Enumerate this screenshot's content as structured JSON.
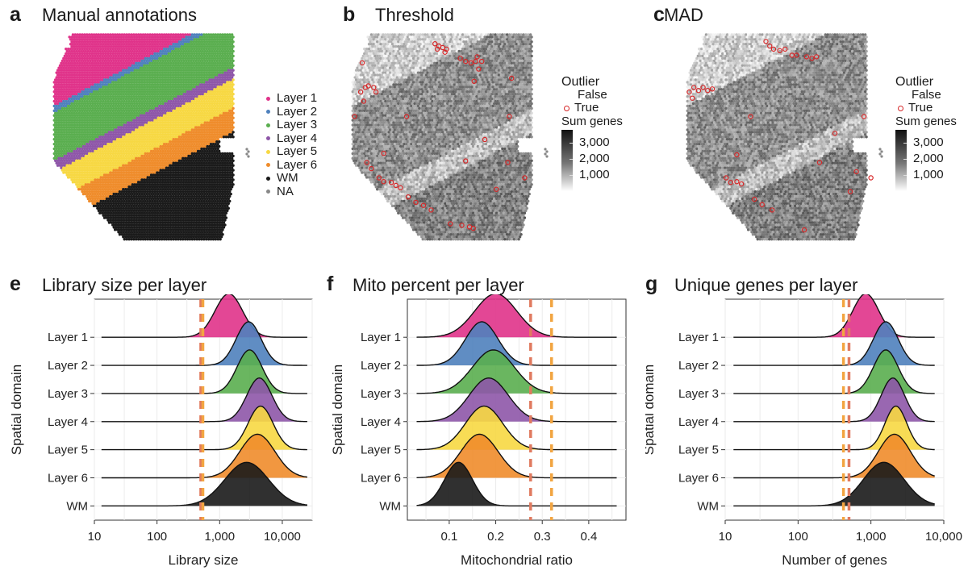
{
  "panels": {
    "a": {
      "letter": "a",
      "title": "Manual annotations"
    },
    "b": {
      "letter": "b",
      "title": "Threshold"
    },
    "c": {
      "letter": "c",
      "title": "MAD"
    },
    "e": {
      "letter": "e",
      "title": "Library size per layer"
    },
    "f": {
      "letter": "f",
      "title": "Mito percent per layer"
    },
    "g": {
      "letter": "g",
      "title": "Unique genes per layer"
    }
  },
  "legend_layers": [
    {
      "label": "Layer 1",
      "color": "#e0338a"
    },
    {
      "label": "Layer 2",
      "color": "#4f81bd"
    },
    {
      "label": "Layer 3",
      "color": "#5aae4f"
    },
    {
      "label": "Layer 4",
      "color": "#8e56a8"
    },
    {
      "label": "Layer 5",
      "color": "#f7d843"
    },
    {
      "label": "Layer 6",
      "color": "#ef8c2b"
    },
    {
      "label": "WM",
      "color": "#1a1a1a"
    },
    {
      "label": "NA",
      "color": "#888888"
    }
  ],
  "outlier_legend": {
    "title": "Outlier",
    "items": [
      {
        "label": "False"
      },
      {
        "label": "True",
        "color": "#d62728"
      }
    ],
    "colorbar_title": "Sum genes",
    "colorbar_ticks": [
      "3,000",
      "2,000",
      "1,000"
    ],
    "colorbar_values": [
      3000,
      2000,
      1000
    ],
    "colorbar_range": [
      0,
      3800
    ]
  },
  "chart_data": [
    {
      "type": "ridgeline",
      "panel": "e",
      "title": "Library size per layer",
      "xlabel": "Library size",
      "ylabel": "Spatial domain",
      "xscale": "log",
      "xlim": [
        10,
        30000
      ],
      "xticks": [
        10,
        100,
        1000,
        10000
      ],
      "xtick_labels": [
        "10",
        "100",
        "1,000",
        "10,000"
      ],
      "categories": [
        "Layer 1",
        "Layer 2",
        "Layer 3",
        "Layer 4",
        "Layer 5",
        "Layer 6",
        "WM"
      ],
      "series": [
        {
          "name": "Layer 1",
          "peak": 1400,
          "sd": 0.22,
          "range": [
            13,
            25000
          ]
        },
        {
          "name": "Layer 2",
          "peak": 2900,
          "sd": 0.2,
          "range": [
            13,
            25000
          ]
        },
        {
          "name": "Layer 3",
          "peak": 3000,
          "sd": 0.2,
          "range": [
            13,
            25000
          ]
        },
        {
          "name": "Layer 4",
          "peak": 4300,
          "sd": 0.2,
          "range": [
            13,
            25000
          ]
        },
        {
          "name": "Layer 5",
          "peak": 4500,
          "sd": 0.2,
          "range": [
            13,
            25000
          ]
        },
        {
          "name": "Layer 6",
          "peak": 4000,
          "sd": 0.28,
          "range": [
            13,
            25000
          ]
        },
        {
          "name": "WM",
          "peak": 2700,
          "sd": 0.35,
          "range": [
            13,
            25000
          ]
        }
      ],
      "thresholds": [
        {
          "value": 500,
          "color": "#e07a5f"
        },
        {
          "value": 540,
          "color": "#f2a541"
        }
      ]
    },
    {
      "type": "ridgeline",
      "panel": "f",
      "title": "Mito percent per layer",
      "xlabel": "Mitochondrial ratio",
      "ylabel": "Spatial domain",
      "xscale": "linear",
      "xlim": [
        0.01,
        0.48
      ],
      "xticks": [
        0.1,
        0.2,
        0.3,
        0.4
      ],
      "xtick_labels": [
        "0.1",
        "0.2",
        "0.3",
        "0.4"
      ],
      "categories": [
        "Layer 1",
        "Layer 2",
        "Layer 3",
        "Layer 4",
        "Layer 5",
        "Layer 6",
        "WM"
      ],
      "series": [
        {
          "name": "Layer 1",
          "peak": 0.2,
          "sd": 0.045,
          "range": [
            0.03,
            0.46
          ]
        },
        {
          "name": "Layer 2",
          "peak": 0.17,
          "sd": 0.035,
          "range": [
            0.03,
            0.46
          ]
        },
        {
          "name": "Layer 3",
          "peak": 0.195,
          "sd": 0.045,
          "range": [
            0.03,
            0.46
          ]
        },
        {
          "name": "Layer 4",
          "peak": 0.185,
          "sd": 0.042,
          "range": [
            0.03,
            0.46
          ]
        },
        {
          "name": "Layer 5",
          "peak": 0.175,
          "sd": 0.04,
          "range": [
            0.03,
            0.46
          ]
        },
        {
          "name": "Layer 6",
          "peak": 0.165,
          "sd": 0.04,
          "range": [
            0.03,
            0.46
          ]
        },
        {
          "name": "WM",
          "peak": 0.12,
          "sd": 0.03,
          "range": [
            0.03,
            0.46
          ]
        }
      ],
      "thresholds": [
        {
          "value": 0.275,
          "color": "#e07a5f"
        },
        {
          "value": 0.32,
          "color": "#f2a541"
        }
      ]
    },
    {
      "type": "ridgeline",
      "panel": "g",
      "title": "Unique genes per layer",
      "xlabel": "Number of genes",
      "ylabel": "Spatial domain",
      "xscale": "log",
      "xlim": [
        10,
        10000
      ],
      "xticks": [
        10,
        100,
        1000,
        10000
      ],
      "xtick_labels": [
        "10",
        "100",
        "1,000",
        "10,000"
      ],
      "categories": [
        "Layer 1",
        "Layer 2",
        "Layer 3",
        "Layer 4",
        "Layer 5",
        "Layer 6",
        "WM"
      ],
      "series": [
        {
          "name": "Layer 1",
          "peak": 850,
          "sd": 0.18,
          "range": [
            13,
            7500
          ]
        },
        {
          "name": "Layer 2",
          "peak": 1600,
          "sd": 0.17,
          "range": [
            13,
            7500
          ]
        },
        {
          "name": "Layer 3",
          "peak": 1600,
          "sd": 0.17,
          "range": [
            13,
            7500
          ]
        },
        {
          "name": "Layer 4",
          "peak": 2000,
          "sd": 0.16,
          "range": [
            13,
            7500
          ]
        },
        {
          "name": "Layer 5",
          "peak": 2200,
          "sd": 0.15,
          "range": [
            13,
            7500
          ]
        },
        {
          "name": "Layer 6",
          "peak": 2100,
          "sd": 0.22,
          "range": [
            13,
            7500
          ]
        },
        {
          "name": "WM",
          "peak": 1500,
          "sd": 0.28,
          "range": [
            13,
            7500
          ]
        }
      ],
      "thresholds": [
        {
          "value": 420,
          "color": "#f2a541"
        },
        {
          "value": 500,
          "color": "#e07a5f"
        }
      ]
    }
  ]
}
